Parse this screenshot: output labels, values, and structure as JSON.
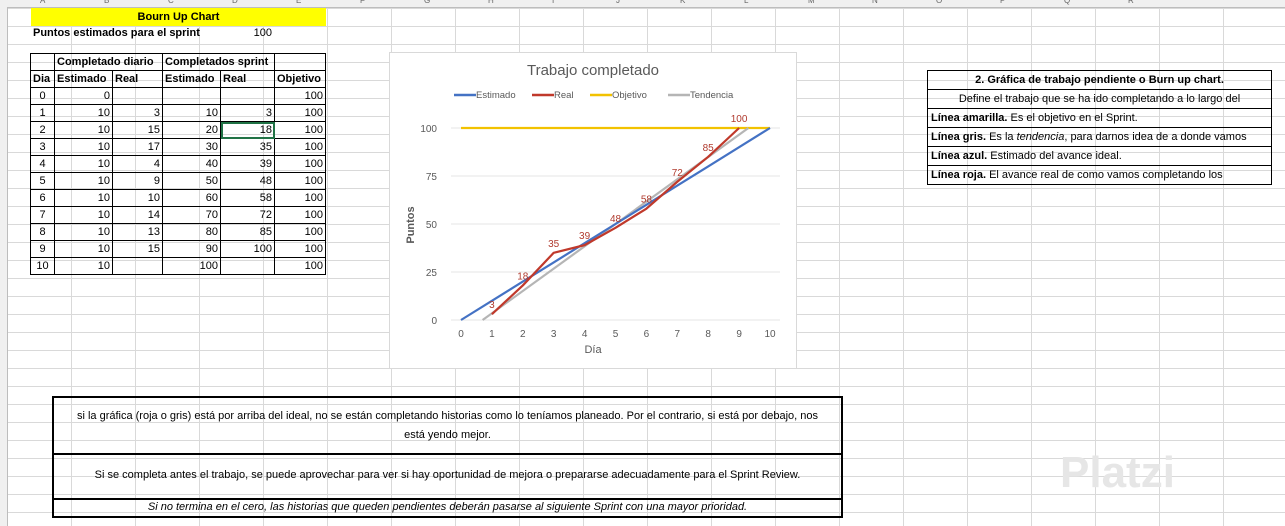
{
  "sheet": {
    "title": "Bourn Up Chart",
    "points_label": "Puntos estimados para el sprint",
    "points_value": "100"
  },
  "table": {
    "group_daily": "Completado diario",
    "group_sprint": "Completados sprint",
    "headers": [
      "Dia",
      "Estimado",
      "Real",
      "Estimado",
      "Real",
      "Objetivo"
    ],
    "rows": [
      [
        "0",
        "0",
        "",
        "",
        "",
        "100"
      ],
      [
        "1",
        "10",
        "3",
        "10",
        "3",
        "100"
      ],
      [
        "2",
        "10",
        "15",
        "20",
        "18",
        "100"
      ],
      [
        "3",
        "10",
        "17",
        "30",
        "35",
        "100"
      ],
      [
        "4",
        "10",
        "4",
        "40",
        "39",
        "100"
      ],
      [
        "5",
        "10",
        "9",
        "50",
        "48",
        "100"
      ],
      [
        "6",
        "10",
        "10",
        "60",
        "58",
        "100"
      ],
      [
        "7",
        "10",
        "14",
        "70",
        "72",
        "100"
      ],
      [
        "8",
        "10",
        "13",
        "80",
        "85",
        "100"
      ],
      [
        "9",
        "10",
        "15",
        "90",
        "100",
        "100"
      ],
      [
        "10",
        "10",
        "",
        "100",
        "",
        "100"
      ]
    ]
  },
  "chart_data": {
    "type": "line",
    "title": "Trabajo completado",
    "xlabel": "Día",
    "ylabel": "Puntos",
    "x": [
      0,
      1,
      2,
      3,
      4,
      5,
      6,
      7,
      8,
      9,
      10
    ],
    "xlim": [
      0,
      10
    ],
    "ylim": [
      0,
      100
    ],
    "yticks": [
      0,
      25,
      50,
      75,
      100
    ],
    "legend_position": "top",
    "series": [
      {
        "name": "Estimado",
        "color": "#4472c4",
        "x": [
          0,
          1,
          2,
          3,
          4,
          5,
          6,
          7,
          8,
          9,
          10
        ],
        "values": [
          0,
          10,
          20,
          30,
          40,
          50,
          60,
          70,
          80,
          90,
          100
        ]
      },
      {
        "name": "Real",
        "color": "#c0392b",
        "x": [
          1,
          2,
          3,
          4,
          5,
          6,
          7,
          8,
          9
        ],
        "values": [
          3,
          18,
          35,
          39,
          48,
          58,
          72,
          85,
          100
        ]
      },
      {
        "name": "Objetivo",
        "color": "#f2c200",
        "x": [
          0,
          1,
          2,
          3,
          4,
          5,
          6,
          7,
          8,
          9,
          10
        ],
        "values": [
          100,
          100,
          100,
          100,
          100,
          100,
          100,
          100,
          100,
          100,
          100
        ]
      },
      {
        "name": "Tendencia",
        "color": "#b5b5b5",
        "x": [
          0.7,
          9.3
        ],
        "values": [
          0,
          100
        ]
      }
    ],
    "data_labels": [
      3,
      18,
      35,
      39,
      48,
      58,
      72,
      85,
      100
    ]
  },
  "right_panel": {
    "heading": "2. Gráfica de trabajo pendiente o Burn up chart.",
    "line1": "Define el trabajo que se ha ido completando a lo largo del",
    "yellow_bold": "Línea amarilla.",
    "yellow_text": " Es el objetivo en el Sprint.",
    "gray_bold": "Línea gris.",
    "gray_text_a": " Es la ",
    "gray_italic": "tendencia",
    "gray_text_b": ", para darnos idea de a donde vamos",
    "blue_bold": "Línea azul.",
    "blue_text": " Estimado del avance ideal.",
    "red_bold": "Línea roja.",
    "red_text": " El avance real de como vamos completando los"
  },
  "notes": {
    "n1": "si la gráfica (roja o gris) está por arriba del ideal, no se están completando historias como lo teníamos planeado. Por el contrario, si está por debajo, nos está yendo mejor.",
    "n2": "Si se completa antes el trabajo, se puede aprovechar para ver si hay oportunidad de mejora o prepararse adecuadamente para el Sprint Review.",
    "n3": "Si no termina en el cero, las historias que queden pendientes deberán pasarse al siguiente Sprint con una mayor prioridad."
  },
  "watermark": "Platzi",
  "column_letters": [
    "A",
    "B",
    "C",
    "D",
    "E",
    "F",
    "G",
    "H",
    "I",
    "J",
    "K",
    "L",
    "M",
    "N",
    "O",
    "P",
    "Q",
    "R"
  ]
}
